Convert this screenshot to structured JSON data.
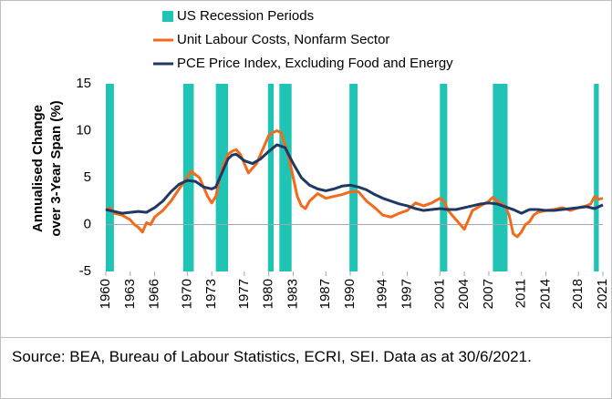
{
  "chart_data": {
    "type": "line",
    "ylabel": [
      "Annualised Change",
      "over 3-Year Span (%)"
    ],
    "xlim": [
      1960,
      2021
    ],
    "xticks": [
      1960,
      1963,
      1966,
      1970,
      1973,
      1977,
      1980,
      1983,
      1987,
      1990,
      1994,
      1997,
      2001,
      2004,
      2007,
      2011,
      2014,
      2018,
      2021
    ],
    "ylim": [
      -5,
      15
    ],
    "yticks": [
      15,
      10,
      5,
      0,
      -5
    ],
    "recessions": {
      "name": "US Recession Periods",
      "color": "#20c4b4",
      "periods": [
        [
          1960.0,
          1961.0
        ],
        [
          1969.5,
          1970.8
        ],
        [
          1973.5,
          1975.0
        ],
        [
          1979.9,
          1980.6
        ],
        [
          1981.3,
          1982.8
        ],
        [
          1989.9,
          1990.9
        ],
        [
          2001.0,
          2001.9
        ],
        [
          2007.5,
          2009.3
        ],
        [
          2019.9,
          2020.5
        ]
      ]
    },
    "series": [
      {
        "name": "Unit Labour Costs, Nonfarm Sector",
        "color": "#f26a1b",
        "x": [
          1960,
          1960.5,
          1961,
          1962,
          1963,
          1963.5,
          1964,
          1964.5,
          1965,
          1965.5,
          1966,
          1967,
          1968,
          1969,
          1970,
          1970.5,
          1971,
          1971.5,
          1972,
          1972.5,
          1973,
          1973.5,
          1974,
          1974.5,
          1975,
          1975.5,
          1976,
          1976.5,
          1977,
          1977.5,
          1978,
          1978.5,
          1979,
          1979.5,
          1980,
          1980.5,
          1981,
          1981.5,
          1982,
          1982.5,
          1983,
          1983.5,
          1984,
          1984.5,
          1985,
          1986,
          1987,
          1988,
          1989,
          1990,
          1991,
          1992,
          1993,
          1994,
          1995,
          1996,
          1997,
          1998,
          1999,
          2000,
          2001,
          2001.5,
          2002,
          2002.5,
          2003,
          2003.5,
          2004,
          2004.5,
          2005,
          2006,
          2007,
          2007.5,
          2008,
          2009,
          2009.5,
          2010,
          2010.5,
          2011,
          2011.5,
          2012,
          2012.5,
          2013,
          2014,
          2015,
          2016,
          2017,
          2018,
          2019,
          2019.5,
          2020,
          2020.5,
          2021
        ],
        "values": [
          1.5,
          1.8,
          1.2,
          1.0,
          0.5,
          0.0,
          -0.3,
          -0.8,
          0.2,
          0.0,
          0.8,
          1.5,
          2.5,
          3.8,
          5.0,
          5.7,
          5.3,
          5.0,
          4.0,
          3.0,
          2.3,
          3.0,
          5.0,
          6.5,
          7.5,
          7.8,
          8.0,
          7.5,
          6.5,
          5.5,
          6.0,
          6.5,
          7.5,
          8.5,
          9.5,
          9.8,
          10.0,
          9.8,
          8.5,
          7.0,
          5.0,
          3.0,
          2.0,
          1.7,
          2.5,
          3.3,
          2.8,
          3.0,
          3.2,
          3.5,
          3.5,
          2.5,
          1.8,
          1.0,
          0.8,
          1.2,
          1.5,
          2.3,
          2.0,
          2.3,
          2.8,
          2.5,
          1.5,
          1.0,
          0.5,
          0.0,
          -0.5,
          0.5,
          1.5,
          2.0,
          2.5,
          2.9,
          2.5,
          2.0,
          1.0,
          -1.0,
          -1.3,
          -0.8,
          0.0,
          0.3,
          1.0,
          1.3,
          1.5,
          1.6,
          1.8,
          1.5,
          1.8,
          2.0,
          2.2,
          3.0,
          2.7,
          2.8
        ]
      },
      {
        "name": "PCE Price Index, Excluding Food and Energy",
        "color": "#1f3864",
        "x": [
          1960,
          1961,
          1962,
          1963,
          1964,
          1965,
          1966,
          1967,
          1968,
          1969,
          1970,
          1971,
          1972,
          1973,
          1973.5,
          1974,
          1975,
          1975.5,
          1976,
          1977,
          1978,
          1979,
          1980,
          1981,
          1982,
          1983,
          1984,
          1985,
          1986,
          1987,
          1988,
          1989,
          1990,
          1991,
          1992,
          1993,
          1994,
          1995,
          1996,
          1997,
          1998,
          1999,
          2000,
          2001,
          2002,
          2003,
          2004,
          2005,
          2006,
          2007,
          2008,
          2009,
          2010,
          2011,
          2012,
          2013,
          2014,
          2015,
          2016,
          2017,
          2018,
          2019,
          2020,
          2021
        ],
        "values": [
          1.6,
          1.4,
          1.2,
          1.3,
          1.4,
          1.3,
          1.8,
          2.5,
          3.5,
          4.3,
          4.7,
          4.6,
          4.0,
          3.8,
          4.0,
          5.0,
          7.0,
          7.4,
          7.5,
          6.8,
          6.5,
          7.0,
          7.8,
          8.5,
          8.2,
          6.5,
          5.0,
          4.2,
          3.8,
          3.6,
          3.8,
          4.1,
          4.2,
          4.0,
          3.7,
          3.2,
          2.8,
          2.5,
          2.2,
          2.0,
          1.7,
          1.5,
          1.6,
          1.7,
          1.6,
          1.6,
          1.8,
          2.0,
          2.2,
          2.3,
          2.2,
          1.9,
          1.6,
          1.2,
          1.6,
          1.6,
          1.5,
          1.5,
          1.6,
          1.7,
          1.8,
          1.9,
          1.7,
          2.1
        ]
      }
    ],
    "source": "Source: BEA, Bureau of Labour Statistics, ECRI, SEI. Data as at 30/6/2021."
  }
}
